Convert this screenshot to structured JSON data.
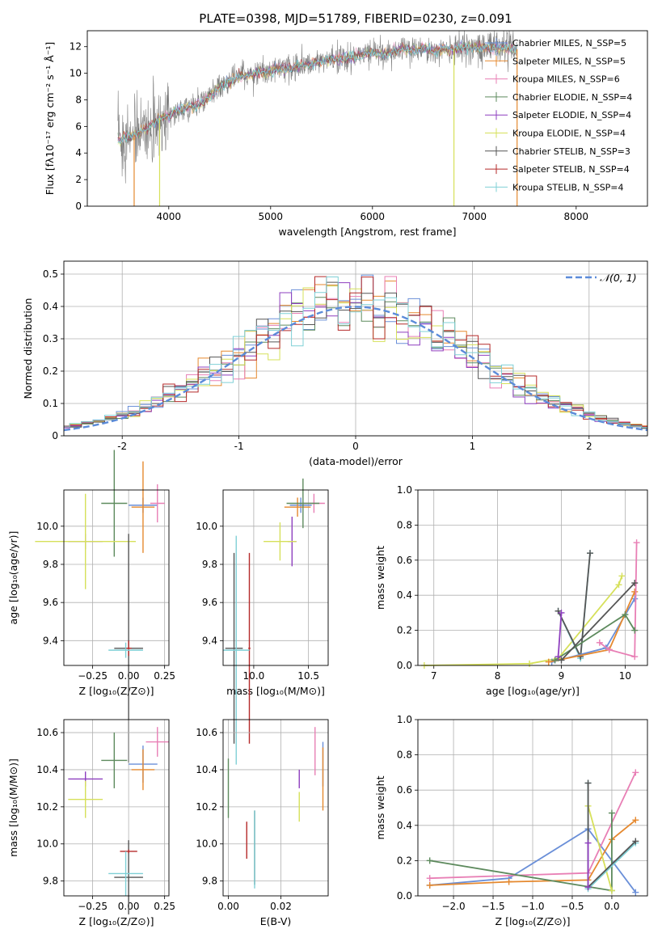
{
  "figure": {
    "title": "PLATE=0398, MJD=51789, FIBERID=0230, z=0.091"
  },
  "colors": {
    "blue": "#6a8fd8",
    "orange": "#e5892f",
    "pink": "#e87fb5",
    "green": "#5d8a5d",
    "purple": "#8e3fbf",
    "yellow": "#d6e05a",
    "gray": "#555555",
    "red": "#b52a2a",
    "cyan": "#7fd0d6",
    "data_gray": "#808080",
    "dashed": "#5b8bd9"
  },
  "chart_data": [
    {
      "id": "spectrum",
      "type": "line",
      "xlabel": "wavelength [Angstrom, rest frame]",
      "ylabel": "Flux [fλ10⁻¹⁷ erg cm⁻² s⁻¹ Å⁻¹]",
      "xlim": [
        3200,
        8700
      ],
      "ylim": [
        0,
        13.2
      ],
      "xticks": [
        4000,
        5000,
        6000,
        7000,
        8000
      ],
      "yticks": [
        0,
        2,
        4,
        6,
        8,
        10,
        12
      ],
      "grid": false,
      "legend_position": "right",
      "continuum_points": [
        [
          3500,
          5.0
        ],
        [
          3600,
          5.2
        ],
        [
          3700,
          5.5
        ],
        [
          3800,
          5.9
        ],
        [
          3900,
          6.6
        ],
        [
          4000,
          6.8
        ],
        [
          4100,
          7.2
        ],
        [
          4200,
          7.5
        ],
        [
          4300,
          7.6
        ],
        [
          4400,
          8.2
        ],
        [
          4500,
          9.0
        ],
        [
          4600,
          9.4
        ],
        [
          4700,
          9.8
        ],
        [
          4800,
          9.9
        ],
        [
          4900,
          10.1
        ],
        [
          5000,
          10.1
        ],
        [
          5100,
          10.4
        ],
        [
          5200,
          10.3
        ],
        [
          5300,
          10.6
        ],
        [
          5400,
          10.7
        ],
        [
          5500,
          10.9
        ],
        [
          5600,
          11.0
        ],
        [
          5700,
          11.1
        ],
        [
          5800,
          11.2
        ],
        [
          5900,
          11.4
        ],
        [
          6000,
          11.6
        ],
        [
          6100,
          11.4
        ],
        [
          6200,
          11.6
        ],
        [
          6300,
          11.8
        ],
        [
          6400,
          11.7
        ],
        [
          6500,
          11.9
        ],
        [
          6600,
          11.7
        ],
        [
          6700,
          11.9
        ],
        [
          6800,
          11.8
        ],
        [
          6900,
          12.0
        ],
        [
          7000,
          11.9
        ],
        [
          7100,
          11.9
        ],
        [
          7200,
          11.9
        ],
        [
          7300,
          12.0
        ],
        [
          7400,
          11.8
        ]
      ],
      "series": [
        {
          "name": "Chabrier MILES, N_SSP=5",
          "color": "#6a8fd8"
        },
        {
          "name": "Salpeter MILES, N_SSP=5",
          "color": "#e5892f"
        },
        {
          "name": "Kroupa MILES, N_SSP=6",
          "color": "#e87fb5"
        },
        {
          "name": "Chabrier ELODIE, N_SSP=4",
          "color": "#5d8a5d"
        },
        {
          "name": "Salpeter ELODIE, N_SSP=4",
          "color": "#8e3fbf"
        },
        {
          "name": "Kroupa ELODIE, N_SSP=4",
          "color": "#d6e05a"
        },
        {
          "name": "Chabrier STELIB, N_SSP=3",
          "color": "#555555"
        },
        {
          "name": "Salpeter STELIB, N_SSP=4",
          "color": "#b52a2a"
        },
        {
          "name": "Kroupa STELIB, N_SSP=4",
          "color": "#7fd0d6"
        }
      ]
    },
    {
      "id": "residuals",
      "type": "histogram",
      "xlabel": "(data-model)/error",
      "ylabel": "Normed distribution",
      "xlim": [
        -2.5,
        2.5
      ],
      "ylim": [
        0,
        0.54
      ],
      "xticks": [
        -2,
        -1,
        0,
        1,
        2
      ],
      "yticks": [
        0.0,
        0.1,
        0.2,
        0.3,
        0.4,
        0.5
      ],
      "grid": true,
      "legend": "𝒩(0, 1)",
      "legend_position": "top-right",
      "bin_width": 0.1,
      "reference_curve": "normal(0,1)"
    },
    {
      "id": "age_vs_Z",
      "type": "errorbar",
      "xlabel": "Z [log₁₀(Z/Z⊙)]",
      "ylabel": "age  [log₁₀(age/yr)]",
      "xlim": [
        -0.45,
        0.28
      ],
      "ylim": [
        9.27,
        10.19
      ],
      "xticks": [
        -0.25,
        0.0,
        0.25
      ],
      "xticklabels": [
        "−0.25",
        "0.00",
        "0.25"
      ],
      "yticks": [
        9.4,
        9.6,
        9.8,
        10.0
      ],
      "yticklabels": [
        "9.4",
        "9.6",
        "9.8",
        "10.0"
      ],
      "grid": true,
      "points": [
        {
          "color": "#6a8fd8",
          "x": 0.1,
          "xerr": 0.1,
          "y": 10.11,
          "yerr": 0.04
        },
        {
          "color": "#e5892f",
          "x": 0.1,
          "xerr": 0.08,
          "y": 10.1,
          "yerr": 0.24
        },
        {
          "color": "#e87fb5",
          "x": 0.2,
          "xerr": 0.05,
          "y": 10.12,
          "yerr": 0.1
        },
        {
          "color": "#5d8a5d",
          "x": -0.1,
          "xerr": 0.09,
          "y": 10.12,
          "yerr": 0.28
        },
        {
          "color": "#8e3fbf",
          "x": -0.3,
          "xerr": 0.12,
          "y": 9.92,
          "yerr": 0.04
        },
        {
          "color": "#d6e05a",
          "x": -0.3,
          "xerr": 0.35,
          "y": 9.92,
          "yerr": 0.25
        },
        {
          "color": "#555555",
          "x": 0.0,
          "xerr": 0.1,
          "y": 9.36,
          "yerr": 0.6
        },
        {
          "color": "#b52a2a",
          "x": 0.0,
          "xerr": 0.02,
          "y": 9.36,
          "yerr": 0.04
        },
        {
          "color": "#7fd0d6",
          "x": -0.02,
          "xerr": 0.12,
          "y": 9.35,
          "yerr": 0.04
        }
      ]
    },
    {
      "id": "age_vs_mass",
      "type": "errorbar",
      "xlabel": "mass [log₁₀(M/M⊙)]",
      "ylabel": "",
      "xlim": [
        9.72,
        10.68
      ],
      "ylim": [
        9.27,
        10.19
      ],
      "xticks": [
        10.0,
        10.5
      ],
      "xticklabels": [
        "10.0",
        "10.5"
      ],
      "yticks": [
        9.4,
        9.6,
        9.8,
        10.0
      ],
      "yticklabels": [
        "9.4",
        "9.6",
        "9.8",
        "10.0"
      ],
      "grid": true,
      "points": [
        {
          "color": "#6a8fd8",
          "x": 10.43,
          "xerr": 0.1,
          "y": 10.11,
          "yerr": 0.04
        },
        {
          "color": "#e5892f",
          "x": 10.4,
          "xerr": 0.12,
          "y": 10.1,
          "yerr": 0.05
        },
        {
          "color": "#e87fb5",
          "x": 10.55,
          "xerr": 0.1,
          "y": 10.12,
          "yerr": 0.05
        },
        {
          "color": "#5d8a5d",
          "x": 10.45,
          "xerr": 0.15,
          "y": 10.12,
          "yerr": 0.13
        },
        {
          "color": "#8e3fbf",
          "x": 10.35,
          "xerr": 0.04,
          "y": 9.92,
          "yerr": 0.13
        },
        {
          "color": "#d6e05a",
          "x": 10.24,
          "xerr": 0.15,
          "y": 9.92,
          "yerr": 0.1
        },
        {
          "color": "#555555",
          "x": 9.82,
          "xerr": 0.08,
          "y": 9.36,
          "yerr": 0.5
        },
        {
          "color": "#b52a2a",
          "x": 9.96,
          "xerr": 0.01,
          "y": 9.36,
          "yerr": 0.5
        },
        {
          "color": "#7fd0d6",
          "x": 9.84,
          "xerr": 0.12,
          "y": 9.35,
          "yerr": 0.6
        }
      ]
    },
    {
      "id": "weight_vs_age",
      "type": "line",
      "xlabel": "age  [log₁₀(age/yr)]",
      "ylabel": "mass weight",
      "xlim": [
        6.75,
        10.35
      ],
      "ylim": [
        0,
        1.0
      ],
      "xticks": [
        7,
        8,
        9,
        10
      ],
      "xticklabels": [
        "7",
        "8",
        "9",
        "10"
      ],
      "yticks": [
        0.0,
        0.2,
        0.4,
        0.6,
        0.8,
        1.0
      ],
      "yticklabels": [
        "0.0",
        "0.2",
        "0.4",
        "0.6",
        "0.8",
        "1.0"
      ],
      "grid": true,
      "series": [
        {
          "color": "#d6e05a",
          "x": [
            6.85,
            8.5,
            8.95,
            9.9,
            9.95
          ],
          "y": [
            0.0,
            0.01,
            0.04,
            0.46,
            0.51
          ]
        },
        {
          "color": "#7fd0d6",
          "x": [
            8.95,
            9.3,
            9.45
          ],
          "y": [
            0.31,
            0.04,
            0.64
          ]
        },
        {
          "color": "#555555",
          "x": [
            8.95,
            9.3,
            9.45
          ],
          "y": [
            0.31,
            0.05,
            0.64
          ]
        },
        {
          "color": "#6a8fd8",
          "x": [
            8.85,
            9.7,
            10.15
          ],
          "y": [
            0.02,
            0.1,
            0.38
          ]
        },
        {
          "color": "#e5892f",
          "x": [
            8.8,
            9.75,
            10.15
          ],
          "y": [
            0.02,
            0.09,
            0.42
          ]
        },
        {
          "color": "#e87fb5",
          "x": [
            9.6,
            9.75,
            10.15,
            10.18
          ],
          "y": [
            0.13,
            0.09,
            0.05,
            0.7
          ]
        },
        {
          "color": "#5d8a5d",
          "x": [
            8.9,
            10.0,
            10.15
          ],
          "y": [
            0.03,
            0.29,
            0.2
          ]
        },
        {
          "color": "#555555",
          "x": [
            9.0,
            10.15
          ],
          "y": [
            0.03,
            0.47
          ]
        },
        {
          "color": "#8e3fbf",
          "x": [
            8.95,
            9.0
          ],
          "y": [
            0.05,
            0.3
          ]
        }
      ]
    },
    {
      "id": "mass_vs_Z",
      "type": "errorbar",
      "xlabel": "Z [log₁₀(Z/Z⊙)]",
      "ylabel": "mass [log₁₀(M/M⊙)]",
      "xlim": [
        -0.45,
        0.28
      ],
      "ylim": [
        9.72,
        10.67
      ],
      "xticks": [
        -0.25,
        0.0,
        0.25
      ],
      "xticklabels": [
        "−0.25",
        "0.00",
        "0.25"
      ],
      "yticks": [
        9.8,
        10.0,
        10.2,
        10.4,
        10.6
      ],
      "yticklabels": [
        "9.8",
        "10.0",
        "10.2",
        "10.4",
        "10.6"
      ],
      "grid": true,
      "points": [
        {
          "color": "#6a8fd8",
          "x": 0.1,
          "xerr": 0.1,
          "y": 10.43,
          "yerr": 0.1
        },
        {
          "color": "#e5892f",
          "x": 0.1,
          "xerr": 0.08,
          "y": 10.4,
          "yerr": 0.11
        },
        {
          "color": "#e87fb5",
          "x": 0.2,
          "xerr": 0.08,
          "y": 10.55,
          "yerr": 0.08
        },
        {
          "color": "#5d8a5d",
          "x": -0.1,
          "xerr": 0.09,
          "y": 10.45,
          "yerr": 0.15
        },
        {
          "color": "#8e3fbf",
          "x": -0.3,
          "xerr": 0.12,
          "y": 10.35,
          "yerr": 0.04
        },
        {
          "color": "#d6e05a",
          "x": -0.3,
          "xerr": 0.12,
          "y": 10.24,
          "yerr": 0.1
        },
        {
          "color": "#555555",
          "x": 0.0,
          "xerr": 0.1,
          "y": 9.82,
          "yerr": 0.2
        },
        {
          "color": "#b52a2a",
          "x": 0.0,
          "xerr": 0.06,
          "y": 9.96,
          "yerr": 0.01
        },
        {
          "color": "#7fd0d6",
          "x": -0.02,
          "xerr": 0.12,
          "y": 9.84,
          "yerr": 0.12
        }
      ]
    },
    {
      "id": "mass_vs_ebv",
      "type": "errorbar",
      "xlabel": "E(B-V)",
      "ylabel": "",
      "xlim": [
        -0.002,
        0.038
      ],
      "ylim": [
        9.72,
        10.67
      ],
      "xticks": [
        0.0,
        0.02
      ],
      "xticklabels": [
        "0.00",
        "0.02"
      ],
      "yticks": [
        9.8,
        10.0,
        10.2,
        10.4,
        10.6
      ],
      "yticklabels": [
        "9.8",
        "10.0",
        "10.2",
        "10.4",
        "10.6"
      ],
      "grid": true,
      "points": [
        {
          "color": "#6a8fd8",
          "x": 0.036,
          "xerr": 0.0,
          "y": 10.43,
          "yerr": 0.12
        },
        {
          "color": "#e5892f",
          "x": 0.036,
          "xerr": 0.0,
          "y": 10.35,
          "yerr": 0.17
        },
        {
          "color": "#e87fb5",
          "x": 0.033,
          "xerr": 0.0,
          "y": 10.5,
          "yerr": 0.13
        },
        {
          "color": "#5d8a5d",
          "x": 0.0,
          "xerr": 0.0,
          "y": 10.3,
          "yerr": 0.16
        },
        {
          "color": "#8e3fbf",
          "x": 0.027,
          "xerr": 0.0,
          "y": 10.35,
          "yerr": 0.05
        },
        {
          "color": "#d6e05a",
          "x": 0.027,
          "xerr": 0.0,
          "y": 10.2,
          "yerr": 0.08
        },
        {
          "color": "#555555",
          "x": 0.01,
          "xerr": 0.0,
          "y": 9.98,
          "yerr": 0.2
        },
        {
          "color": "#b52a2a",
          "x": 0.007,
          "xerr": 0.0,
          "y": 10.02,
          "yerr": 0.1
        },
        {
          "color": "#7fd0d6",
          "x": 0.01,
          "xerr": 0.0,
          "y": 9.97,
          "yerr": 0.21
        }
      ]
    },
    {
      "id": "weight_vs_Z",
      "type": "line",
      "xlabel": "Z [log₁₀(Z/Z⊙)]",
      "ylabel": "mass weight",
      "xlim": [
        -2.45,
        0.45
      ],
      "ylim": [
        0,
        1.0
      ],
      "xticks": [
        -2.0,
        -1.5,
        -1.0,
        -0.5,
        0.0
      ],
      "xticklabels": [
        "−2.0",
        "−1.5",
        "−1.0",
        "−0.5",
        "0.0"
      ],
      "yticks": [
        0.0,
        0.2,
        0.4,
        0.6,
        0.8,
        1.0
      ],
      "yticklabels": [
        "0.0",
        "0.2",
        "0.4",
        "0.6",
        "0.8",
        "1.0"
      ],
      "grid": true,
      "series": [
        {
          "color": "#6a8fd8",
          "x": [
            -2.3,
            -1.3,
            -0.3,
            0.3
          ],
          "y": [
            0.06,
            0.1,
            0.38,
            0.02
          ]
        },
        {
          "color": "#e5892f",
          "x": [
            -2.3,
            -1.3,
            -0.3,
            0.0,
            0.3
          ],
          "y": [
            0.06,
            0.08,
            0.09,
            0.32,
            0.43
          ]
        },
        {
          "color": "#e87fb5",
          "x": [
            -2.3,
            -0.3,
            0.3
          ],
          "y": [
            0.1,
            0.13,
            0.7
          ]
        },
        {
          "color": "#5d8a5d",
          "x": [
            -2.3,
            0.0,
            0.0
          ],
          "y": [
            0.2,
            0.03,
            0.47
          ]
        },
        {
          "color": "#d6e05a",
          "x": [
            -0.3,
            0.0
          ],
          "y": [
            0.51,
            0.03
          ]
        },
        {
          "color": "#7fd0d6",
          "x": [
            -0.3,
            -0.3,
            0.3
          ],
          "y": [
            0.64,
            0.04,
            0.3
          ]
        },
        {
          "color": "#555555",
          "x": [
            -0.3,
            -0.3,
            0.3
          ],
          "y": [
            0.64,
            0.05,
            0.31
          ]
        },
        {
          "color": "#8e3fbf",
          "x": [
            -0.3,
            -0.3
          ],
          "y": [
            0.05,
            0.3
          ]
        }
      ]
    }
  ]
}
